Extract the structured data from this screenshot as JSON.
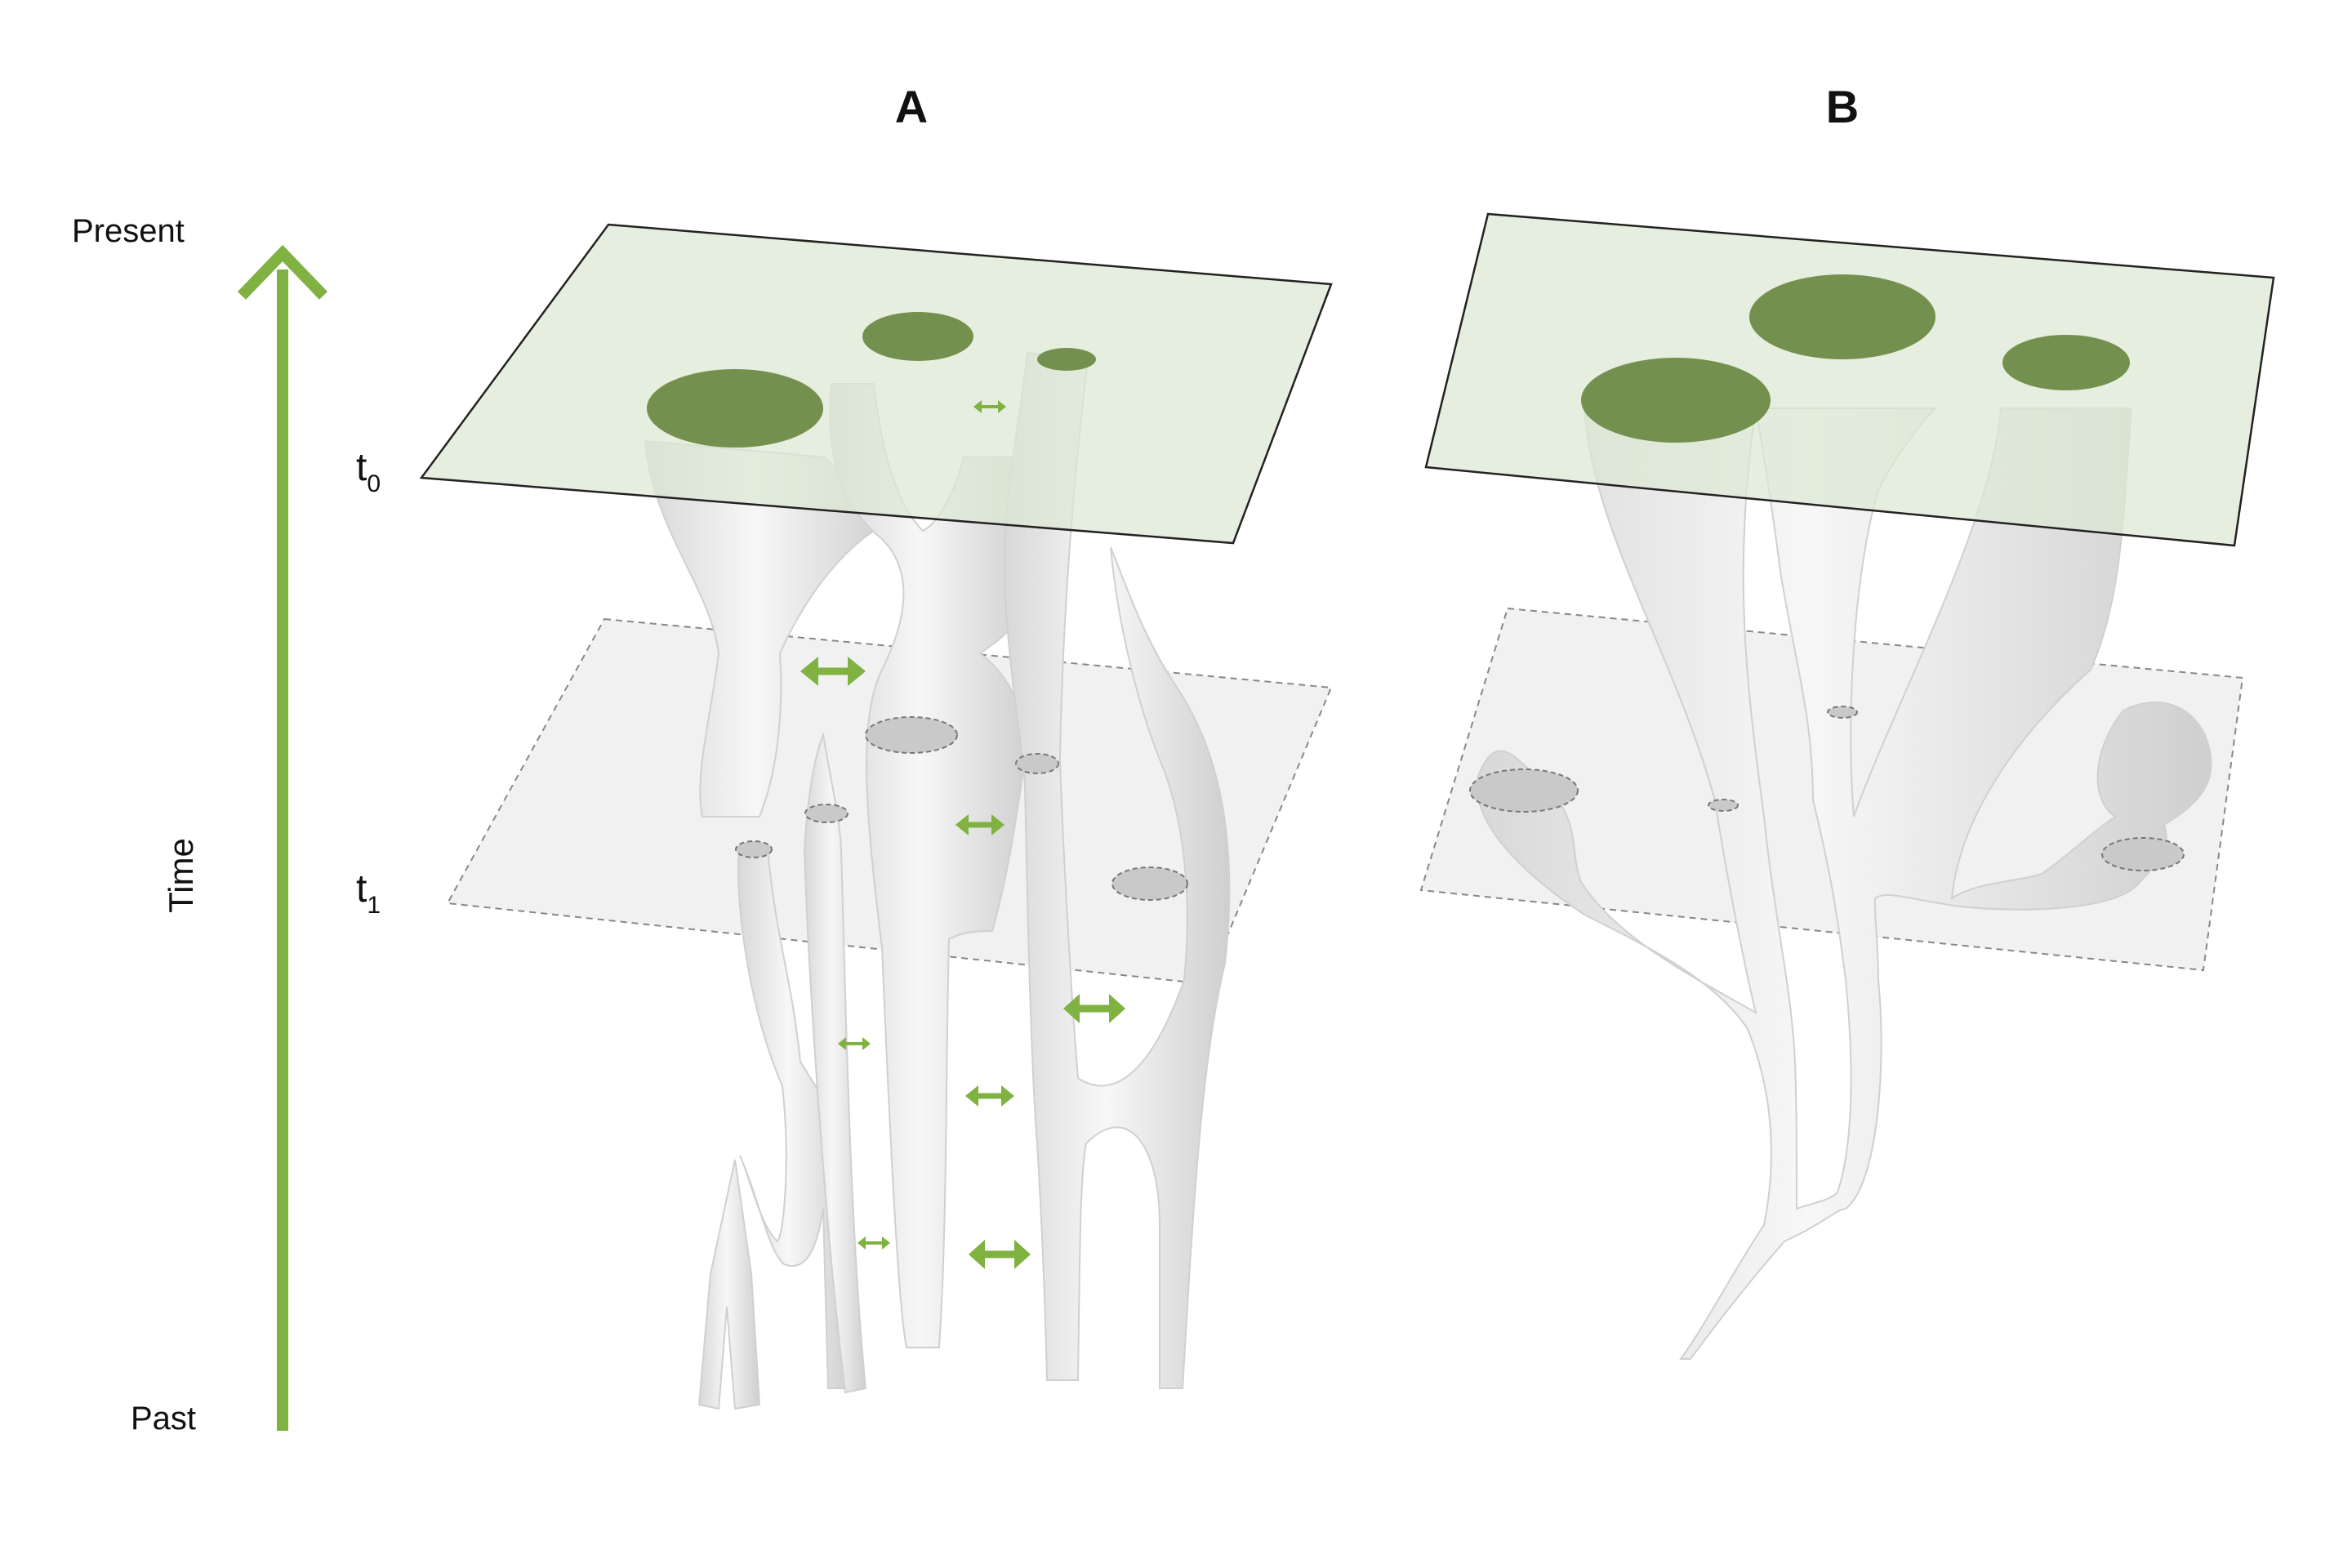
{
  "panels": [
    {
      "label": "A"
    },
    {
      "label": "B"
    }
  ],
  "time_axis": {
    "top_label": "Present",
    "bottom_label": "Past",
    "axis_label": "Time",
    "color": "#7FB241"
  },
  "planes": [
    {
      "symbol": "t",
      "subscript": "0"
    },
    {
      "symbol": "t",
      "subscript": "1"
    }
  ],
  "colors": {
    "plane_present_fill": "#DCE7D3",
    "plane_past_fill": "#EEEEEE",
    "lineage_fill": "#E6E6E6",
    "section_present": "#74904E",
    "section_past": "#C9C9C9",
    "arrow": "#7FB241"
  },
  "icons": {
    "arrow_up": "arrow-up-icon",
    "double_arrow": "double-arrow-icon"
  }
}
